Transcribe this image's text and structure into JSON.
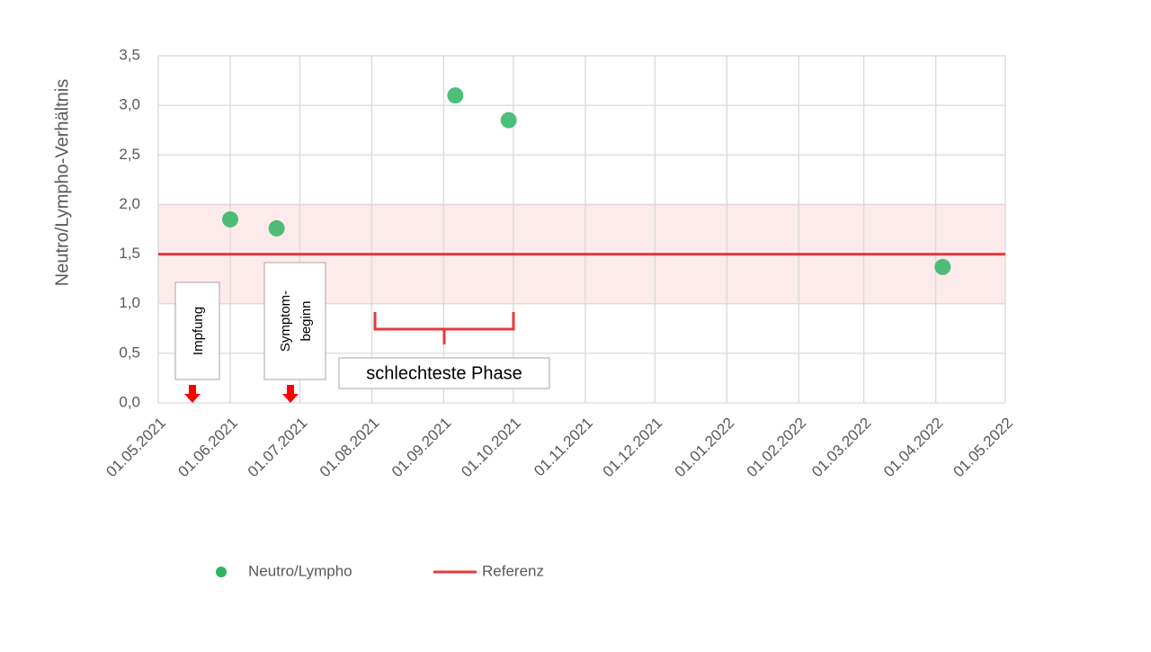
{
  "chart_data": {
    "type": "scatter",
    "y_label": "Neutro/Lympho-Verhältnis",
    "x": [
      "2021-06-01",
      "2021-06-21",
      "2021-09-06",
      "2021-09-29",
      "2022-04-04"
    ],
    "series": [
      {
        "name": "Neutro/Lympho",
        "color": "#2fb463",
        "values": [
          1.85,
          1.76,
          3.1,
          2.85,
          1.37
        ]
      }
    ],
    "reference": {
      "name": "Referenz",
      "color": "#e8393a",
      "value": 1.5,
      "band": [
        1.0,
        2.0
      ],
      "band_color": "#fdeaea"
    },
    "xlim": [
      "2021-05-01",
      "2022-05-01"
    ],
    "xticks": [
      {
        "value": "2021-05-01",
        "label": "01.05.2021"
      },
      {
        "value": "2021-06-01",
        "label": "01.06.2021"
      },
      {
        "value": "2021-07-01",
        "label": "01.07.2021"
      },
      {
        "value": "2021-08-01",
        "label": "01.08.2021"
      },
      {
        "value": "2021-09-01",
        "label": "01.09.2021"
      },
      {
        "value": "2021-10-01",
        "label": "01.10.2021"
      },
      {
        "value": "2021-11-01",
        "label": "01.11.2021"
      },
      {
        "value": "2021-12-01",
        "label": "01.12.2021"
      },
      {
        "value": "2022-01-01",
        "label": "01.01.2022"
      },
      {
        "value": "2022-02-01",
        "label": "01.02.2022"
      },
      {
        "value": "2022-03-01",
        "label": "01.03.2022"
      },
      {
        "value": "2022-04-01",
        "label": "01.04.2022"
      },
      {
        "value": "2022-05-01",
        "label": "01.05.2022"
      }
    ],
    "ylim": [
      0,
      3.5
    ],
    "yticks": [
      {
        "value": 0,
        "label": "0,0"
      },
      {
        "value": 0.5,
        "label": "0,5"
      },
      {
        "value": 1,
        "label": "1,0"
      },
      {
        "value": 1.5,
        "label": "1,5"
      },
      {
        "value": 2,
        "label": "2,0"
      },
      {
        "value": 2.5,
        "label": "2,5"
      },
      {
        "value": 3,
        "label": "3,0"
      },
      {
        "value": 3.5,
        "label": "3,5"
      }
    ],
    "grid": true,
    "annotations": {
      "vaccination": "Impfung",
      "symptom": [
        "Symptom-",
        "beginn"
      ],
      "phase": "schlechteste Phase"
    }
  }
}
